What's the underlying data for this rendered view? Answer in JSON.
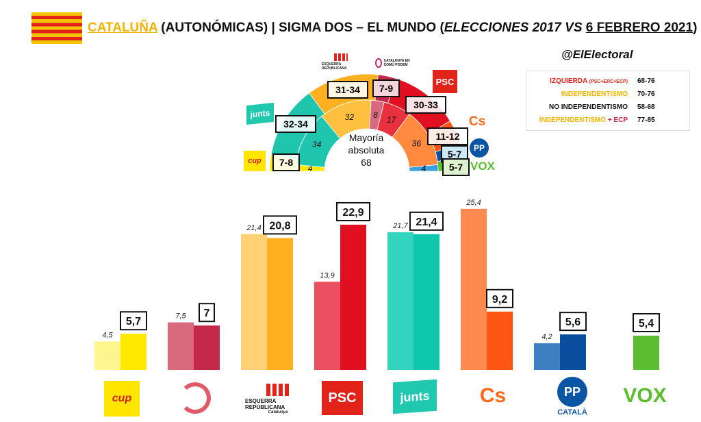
{
  "header": {
    "region": "CATALUÑA",
    "subtitle": "(AUTONÓMICAS)",
    "separator": "|",
    "pollster": "SIGMA DOS – EL MUNDO (",
    "compare": "ELECCIONES 2017 VS",
    "date": "6 FEBRERO 2021",
    "close": ")",
    "handle": "@ElElectoral"
  },
  "colors": {
    "cup_2017": "#fff68f",
    "cup_2021": "#ffe800",
    "ecp_2017": "#d96a7e",
    "ecp_2021": "#c4284a",
    "erc_2017": "#ffd074",
    "erc_2021": "#ffb020",
    "psc_2017": "#ea5060",
    "psc_2021": "#e01020",
    "junts_2017": "#34d3c0",
    "junts_2021": "#0fc7ad",
    "cs_2017": "#ff8a50",
    "cs_2021": "#ff5512",
    "pp_2017": "#3d7fc0",
    "pp_2021": "#0a4ea0",
    "vox_2021": "#5cbd30"
  },
  "legend": [
    {
      "label": "IZQUIERDA",
      "sub": "(PSC+ERC+ECP)",
      "value": "68-76",
      "color": "#e2231a"
    },
    {
      "label": "INDEPENDENTISMO",
      "sub": "",
      "value": "70-76",
      "color": "#f5b400"
    },
    {
      "label": "NO INDEPENDENTISMO",
      "sub": "",
      "value": "58-68",
      "color": "#111111"
    },
    {
      "label": "INDEPENDENTISMO",
      "sub": "+ ECP",
      "value": "77-85",
      "color": "#f5b400"
    }
  ],
  "hemicycle": {
    "center_line1": "Mayoría",
    "center_line2": "absoluta",
    "center_line3": "68",
    "seats_2017": [
      {
        "party": "CUP",
        "seats": 4,
        "color": "#ffe800",
        "label": "4"
      },
      {
        "party": "Junts",
        "seats": 34,
        "color": "#1fc5ad",
        "label": "34"
      },
      {
        "party": "ERC",
        "seats": 32,
        "color": "#ffc040",
        "label": "32"
      },
      {
        "party": "ECP",
        "seats": 8,
        "color": "#d96a7e",
        "label": "8"
      },
      {
        "party": "PSC",
        "seats": 17,
        "color": "#e8303f",
        "label": "17"
      },
      {
        "party": "Cs",
        "seats": 36,
        "color": "#ff8a40",
        "label": "36"
      },
      {
        "party": "PP",
        "seats": 4,
        "color": "#3aa0e0",
        "label": "4"
      }
    ],
    "seats_2021": [
      {
        "party": "CUP",
        "seats": 7.5,
        "color": "#ffe800"
      },
      {
        "party": "Junts",
        "seats": 33,
        "color": "#1fc5ad"
      },
      {
        "party": "ERC",
        "seats": 32.5,
        "color": "#ffb020"
      },
      {
        "party": "ECP",
        "seats": 8,
        "color": "#c4284a"
      },
      {
        "party": "PSC",
        "seats": 31.5,
        "color": "#e01020"
      },
      {
        "party": "Cs",
        "seats": 11.5,
        "color": "#ff5512"
      },
      {
        "party": "PP",
        "seats": 6,
        "color": "#0a4ea0"
      },
      {
        "party": "VOX",
        "seats": 6,
        "color": "#5cbd30"
      }
    ],
    "ranges": {
      "erc": "31-34",
      "ecp": "7-9",
      "psc": "30-33",
      "junts": "32-34",
      "cs": "11-12",
      "pp": "5-7",
      "vox": "5-7",
      "cup": "7-8"
    }
  },
  "logos": {
    "cup": "cup",
    "erc": "ESQUERRA REPUBLICANA",
    "psc": "PSC",
    "junts": "junts",
    "cs": "Cs",
    "pp": "PP",
    "pp_sub": "CATALÀ",
    "vox": "VOX",
    "ecp": "CATALUNYA EN COMÚ PODEM",
    "erc_sub": "Catalunya"
  },
  "chart_data": {
    "type": "bar",
    "categories": [
      "CUP",
      "ECP",
      "ERC",
      "PSC",
      "Junts",
      "Cs",
      "PP",
      "VOX"
    ],
    "series": [
      {
        "name": "ELECCIONES 2017",
        "values": [
          4.5,
          7.5,
          21.4,
          13.9,
          21.7,
          25.4,
          4.2,
          null
        ]
      },
      {
        "name": "6 FEBRERO 2021",
        "values": [
          5.7,
          7,
          20.8,
          22.9,
          21.4,
          9.2,
          5.6,
          5.4
        ]
      }
    ],
    "labels_2017": [
      "4,5",
      "7,5",
      "21,4",
      "13,9",
      "21,7",
      "25,4",
      "4,2",
      ""
    ],
    "labels_2021": [
      "5,7",
      "7",
      "20,8",
      "22,9",
      "21,4",
      "9,2",
      "5,6",
      "5,4"
    ],
    "colors_2017": [
      "#fff68f",
      "#d96a7e",
      "#ffd074",
      "#ea5060",
      "#34d3c0",
      "#ff8a50",
      "#3d7fc0",
      ""
    ],
    "colors_2021": [
      "#ffe800",
      "#c4284a",
      "#ffb020",
      "#e01020",
      "#0fc7ad",
      "#ff5512",
      "#0a4ea0",
      "#5cbd30"
    ],
    "ylim": [
      0,
      27
    ]
  }
}
